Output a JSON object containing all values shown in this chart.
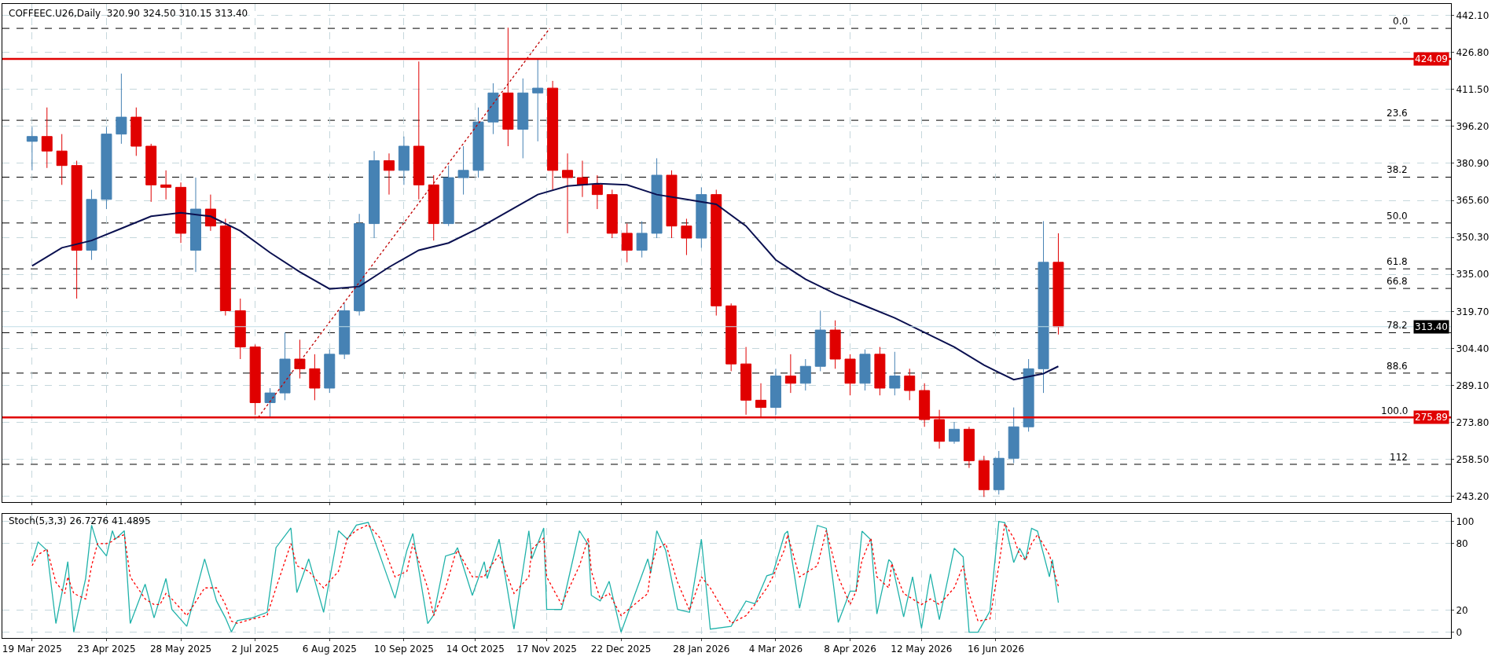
{
  "chart_data": [
    {
      "type": "candlestick",
      "title": "COFFEEC.U26,Daily  320.90 324.50 310.15 313.40",
      "x": [
        "2025-03-19",
        "2025-03-26",
        "2025-04-02",
        "2025-04-09",
        "2025-04-16",
        "2025-04-23",
        "2025-04-30",
        "2025-05-07",
        "2025-05-14",
        "2025-05-21",
        "2025-05-28",
        "2025-06-04",
        "2025-06-11",
        "2025-06-18",
        "2025-06-25",
        "2025-07-02",
        "2025-07-09",
        "2025-07-16",
        "2025-07-23",
        "2025-07-30",
        "2025-08-06",
        "2025-08-13",
        "2025-08-20",
        "2025-08-27",
        "2025-09-03",
        "2025-09-10",
        "2025-09-17",
        "2025-09-24",
        "2025-10-01",
        "2025-10-08",
        "2025-10-15",
        "2025-10-22",
        "2025-10-29",
        "2025-11-05",
        "2025-11-12",
        "2025-11-19",
        "2025-11-26",
        "2025-12-03",
        "2025-12-10",
        "2025-12-17",
        "2025-12-24",
        "2025-12-31",
        "2026-01-07",
        "2026-01-14",
        "2026-01-21",
        "2026-01-28",
        "2026-02-04",
        "2026-02-11",
        "2026-02-18",
        "2026-02-25",
        "2026-03-04",
        "2026-03-11",
        "2026-03-18",
        "2026-03-25",
        "2026-04-01",
        "2026-04-08",
        "2026-04-15",
        "2026-04-22",
        "2026-04-29",
        "2026-05-06",
        "2026-05-13",
        "2026-05-20",
        "2026-05-27",
        "2026-06-03",
        "2026-06-10",
        "2026-06-17",
        "2026-06-24",
        "2026-07-01",
        "2026-07-08",
        "2026-07-15"
      ],
      "ohlc": [
        [
          390,
          396,
          378,
          392
        ],
        [
          392,
          404,
          379,
          386
        ],
        [
          386,
          393,
          372,
          380
        ],
        [
          380,
          382,
          325,
          345
        ],
        [
          345,
          370,
          341,
          366
        ],
        [
          366,
          396,
          362,
          393
        ],
        [
          393,
          418,
          389,
          400
        ],
        [
          400,
          404,
          384,
          388
        ],
        [
          388,
          389,
          365,
          372
        ],
        [
          372,
          378,
          366,
          371
        ],
        [
          371,
          373,
          348,
          352
        ],
        [
          345,
          375,
          336,
          362
        ],
        [
          362,
          368,
          353,
          355
        ],
        [
          355,
          358,
          318,
          320
        ],
        [
          320,
          325,
          300,
          305
        ],
        [
          305,
          306,
          277,
          282
        ],
        [
          282,
          288,
          276,
          286
        ],
        [
          286,
          311,
          283,
          300
        ],
        [
          300,
          308,
          292,
          296
        ],
        [
          296,
          302,
          283,
          288
        ],
        [
          288,
          304,
          286,
          302
        ],
        [
          302,
          323,
          300,
          320
        ],
        [
          320,
          360,
          318,
          356
        ],
        [
          356,
          386,
          350,
          382
        ],
        [
          382,
          385,
          368,
          378
        ],
        [
          378,
          392,
          372,
          388
        ],
        [
          388,
          423,
          366,
          372
        ],
        [
          372,
          376,
          349,
          356
        ],
        [
          356,
          380,
          355,
          375
        ],
        [
          375,
          388,
          368,
          378
        ],
        [
          378,
          404,
          375,
          398
        ],
        [
          398,
          414,
          393,
          410
        ],
        [
          410,
          437,
          388,
          395
        ],
        [
          395,
          416,
          383,
          410
        ],
        [
          410,
          424,
          390,
          412
        ],
        [
          412,
          415,
          370,
          378
        ],
        [
          378,
          385,
          352,
          375
        ],
        [
          375,
          382,
          367,
          372
        ],
        [
          372,
          376,
          362,
          368
        ],
        [
          368,
          370,
          350,
          352
        ],
        [
          352,
          356,
          340,
          345
        ],
        [
          345,
          357,
          342,
          352
        ],
        [
          352,
          383,
          350,
          376
        ],
        [
          376,
          378,
          350,
          355
        ],
        [
          355,
          358,
          343,
          350
        ],
        [
          350,
          371,
          346,
          368
        ],
        [
          368,
          370,
          318,
          322
        ],
        [
          322,
          323,
          295,
          298
        ],
        [
          298,
          305,
          277,
          283
        ],
        [
          283,
          290,
          276,
          280
        ],
        [
          280,
          296,
          277,
          293
        ],
        [
          293,
          302,
          286,
          290
        ],
        [
          290,
          300,
          287,
          297
        ],
        [
          297,
          320,
          295,
          312
        ],
        [
          312,
          316,
          296,
          300
        ],
        [
          300,
          302,
          285,
          290
        ],
        [
          290,
          304,
          287,
          302
        ],
        [
          302,
          305,
          285,
          288
        ],
        [
          288,
          303,
          285,
          293
        ],
        [
          293,
          296,
          283,
          287
        ],
        [
          287,
          290,
          272,
          275
        ],
        [
          275,
          279,
          263,
          266
        ],
        [
          266,
          274,
          265,
          271
        ],
        [
          271,
          272,
          255,
          258
        ],
        [
          258,
          260,
          243,
          246
        ],
        [
          246,
          262,
          244,
          259
        ],
        [
          259,
          280,
          257,
          272
        ],
        [
          272,
          300,
          270,
          296
        ],
        [
          296,
          357,
          286,
          340
        ],
        [
          340,
          352,
          310.15,
          313.4
        ]
      ],
      "colors": [
        "#4682b4",
        "#e00000",
        "#e00000",
        "#e00000",
        "#4682b4",
        "#4682b4",
        "#4682b4",
        "#e00000",
        "#e00000",
        "#e00000",
        "#e00000",
        "#4682b4",
        "#e00000",
        "#e00000",
        "#e00000",
        "#e00000",
        "#4682b4",
        "#4682b4",
        "#e00000",
        "#e00000",
        "#4682b4",
        "#4682b4",
        "#4682b4",
        "#4682b4",
        "#e00000",
        "#4682b4",
        "#e00000",
        "#e00000",
        "#4682b4",
        "#4682b4",
        "#4682b4",
        "#4682b4",
        "#e00000",
        "#4682b4",
        "#4682b4",
        "#e00000",
        "#e00000",
        "#e00000",
        "#e00000",
        "#e00000",
        "#e00000",
        "#4682b4",
        "#4682b4",
        "#e00000",
        "#e00000",
        "#4682b4",
        "#e00000",
        "#e00000",
        "#e00000",
        "#e00000",
        "#4682b4",
        "#e00000",
        "#4682b4",
        "#4682b4",
        "#e00000",
        "#e00000",
        "#4682b4",
        "#e00000",
        "#4682b4",
        "#e00000",
        "#e00000",
        "#e00000",
        "#4682b4",
        "#e00000",
        "#e00000",
        "#4682b4",
        "#4682b4",
        "#4682b4",
        "#4682b4",
        "#e00000"
      ],
      "series": [
        {
          "type": "line",
          "color": "#0a1050",
          "x": [
            "2025-03-19",
            "2025-04-02",
            "2025-04-16",
            "2025-04-30",
            "2025-05-14",
            "2025-05-28",
            "2025-06-11",
            "2025-06-25",
            "2025-07-09",
            "2025-07-23",
            "2025-08-06",
            "2025-08-20",
            "2025-09-03",
            "2025-09-17",
            "2025-10-01",
            "2025-10-15",
            "2025-10-29",
            "2025-11-12",
            "2025-11-26",
            "2025-12-10",
            "2025-12-24",
            "2026-01-07",
            "2026-01-21",
            "2026-02-04",
            "2026-02-18",
            "2026-03-04",
            "2026-03-18",
            "2026-04-01",
            "2026-04-15",
            "2026-04-29",
            "2026-05-13",
            "2026-05-27",
            "2026-06-10",
            "2026-06-24",
            "2026-07-08",
            "2026-07-15"
          ],
          "values": [
            338.5,
            346,
            349,
            354,
            359,
            360.5,
            359,
            353,
            344,
            336,
            329,
            330,
            338,
            345,
            348,
            354,
            361,
            368,
            371.5,
            372.5,
            372,
            368,
            366,
            364,
            355,
            341,
            333,
            327,
            322,
            317,
            311,
            305,
            297.5,
            291.5,
            294,
            297
          ]
        },
        {
          "type": "line",
          "color": "#c00000",
          "line_style": "dotted",
          "x": [
            "2025-07-03",
            "2025-11-18"
          ],
          "values": [
            275.9,
            436.7
          ]
        }
      ],
      "ref_lines": [
        {
          "axis": "y",
          "value": 424.09,
          "label": "424.09",
          "color": "#e00000",
          "line_style": "solid"
        },
        {
          "axis": "y",
          "value": 275.89,
          "label": "275.89",
          "color": "#e00000",
          "line_style": "solid"
        },
        {
          "axis": "y",
          "value": 313.4,
          "label": "313.40",
          "color": "#c0dce6",
          "line_style": "solid"
        },
        {
          "axis": "y",
          "value": 436.7,
          "color": "#000000",
          "line_style": "dashed"
        },
        {
          "axis": "y",
          "value": 398.7,
          "color": "#000000",
          "line_style": "dashed"
        },
        {
          "axis": "y",
          "value": 375.2,
          "color": "#000000",
          "line_style": "dashed"
        },
        {
          "axis": "y",
          "value": 356.25,
          "color": "#000000",
          "line_style": "dashed"
        },
        {
          "axis": "y",
          "value": 337.3,
          "color": "#000000",
          "line_style": "dashed"
        },
        {
          "axis": "y",
          "value": 329.2,
          "color": "#000000",
          "line_style": "dashed"
        },
        {
          "axis": "y",
          "value": 310.9,
          "color": "#000000",
          "line_style": "dashed"
        },
        {
          "axis": "y",
          "value": 294.2,
          "color": "#000000",
          "line_style": "dashed"
        },
        {
          "axis": "y",
          "value": 256.5,
          "color": "#000000",
          "line_style": "dashed"
        }
      ],
      "annotations": [
        {
          "text": "0.0",
          "x": "2026-12-28",
          "y": 436.7
        },
        {
          "text": "23.6",
          "x": "2026-12-28",
          "y": 398.7
        },
        {
          "text": "38.2",
          "x": "2026-12-28",
          "y": 375.2
        },
        {
          "text": "50.0",
          "x": "2026-12-28",
          "y": 356.25
        },
        {
          "text": "61.8",
          "x": "2026-12-28",
          "y": 337.3
        },
        {
          "text": "66.8",
          "x": "2026-12-28",
          "y": 329.2
        },
        {
          "text": "78.2",
          "x": "2026-12-28",
          "y": 310.9
        },
        {
          "text": "88.6",
          "x": "2026-12-28",
          "y": 294.2
        },
        {
          "text": "100.0",
          "x": "2026-12-28",
          "y": 275.8
        },
        {
          "text": "112",
          "x": "2026-12-28",
          "y": 256.5
        }
      ],
      "xlim": [
        "2025-03-05",
        "2027-01-15"
      ],
      "xticks": [
        {
          "value": "2025-03-19",
          "label": null
        },
        {
          "value": "2025-04-23",
          "label": null
        },
        {
          "value": "2025-05-28",
          "label": null
        },
        {
          "value": "2025-07-02",
          "label": null
        },
        {
          "value": "2025-08-06",
          "label": null
        },
        {
          "value": "2025-09-10",
          "label": null
        },
        {
          "value": "2025-10-14",
          "label": null
        },
        {
          "value": "2025-11-17",
          "label": null
        },
        {
          "value": "2025-12-22",
          "label": null
        },
        {
          "value": "2026-01-28",
          "label": null
        },
        {
          "value": "2026-03-04",
          "label": null
        },
        {
          "value": "2026-04-08",
          "label": null
        },
        {
          "value": "2026-05-12",
          "label": null
        },
        {
          "value": "2026-06-16",
          "label": null
        }
      ],
      "ylim": [
        240.9,
        446.8
      ],
      "yticks": [
        {
          "value": 442.1,
          "label": "442.10"
        },
        {
          "value": 426.8,
          "label": "426.80"
        },
        {
          "value": 411.5,
          "label": "411.50"
        },
        {
          "value": 396.2,
          "label": "396.20"
        },
        {
          "value": 380.9,
          "label": "380.90"
        },
        {
          "value": 365.6,
          "label": "365.60"
        },
        {
          "value": 350.3,
          "label": "350.30"
        },
        {
          "value": 335,
          "label": "335.00"
        },
        {
          "value": 319.7,
          "label": "319.70"
        },
        {
          "value": 304.4,
          "label": "304.40"
        },
        {
          "value": 289.1,
          "label": "289.10"
        },
        {
          "value": 273.8,
          "label": "273.80"
        },
        {
          "value": 258.5,
          "label": "258.50"
        },
        {
          "value": 243.2,
          "label": "243.20"
        }
      ],
      "tick_labels": "y",
      "grid": true
    },
    {
      "type": "line",
      "title": "Stoch(5,3,3) 26.7276 41.4895",
      "x": [
        "2025-03-19",
        "2025-03-21",
        "2025-03-26",
        "2025-03-31",
        "2025-04-03",
        "2025-04-04",
        "2025-04-08",
        "2025-04-14",
        "2025-04-16",
        "2025-04-18",
        "2025-04-23",
        "2025-04-25",
        "2025-04-28",
        "2025-05-01",
        "2025-05-05",
        "2025-05-12",
        "2025-05-15",
        "2025-05-19",
        "2025-05-21",
        "2025-05-23",
        "2025-05-30",
        "2025-06-09",
        "2025-06-13",
        "2025-06-18",
        "2025-06-20",
        "2025-06-24",
        "2025-07-01",
        "2025-07-08",
        "2025-07-11",
        "2025-07-18",
        "2025-07-22",
        "2025-07-28",
        "2025-08-04",
        "2025-08-11",
        "2025-08-14",
        "2025-08-19",
        "2025-08-25",
        "2025-08-29",
        "2025-09-05",
        "2025-09-11",
        "2025-09-15",
        "2025-09-22",
        "2025-09-24",
        "2025-09-30",
        "2025-10-03",
        "2025-10-06",
        "2025-10-13",
        "2025-10-17",
        "2025-10-20",
        "2025-10-24",
        "2025-10-31",
        "2025-11-07",
        "2025-11-10",
        "2025-11-14",
        "2025-11-17",
        "2025-11-24",
        "2025-12-02",
        "2025-12-05",
        "2025-12-08",
        "2025-12-11",
        "2025-12-16",
        "2025-12-22",
        "2026-01-02",
        "2026-01-05",
        "2026-01-07",
        "2026-01-12",
        "2026-01-16",
        "2026-01-22",
        "2026-01-28",
        "2026-02-02",
        "2026-02-11",
        "2026-02-18",
        "2026-02-23",
        "2026-02-27",
        "2026-03-03",
        "2026-03-09",
        "2026-03-10",
        "2026-03-16",
        "2026-03-24",
        "2026-03-27",
        "2026-04-02",
        "2026-04-08",
        "2026-04-10",
        "2026-04-14",
        "2026-04-17",
        "2026-04-21",
        "2026-04-27",
        "2026-04-28",
        "2026-05-04",
        "2026-05-07",
        "2026-05-12",
        "2026-05-15",
        "2026-05-20",
        "2026-05-27",
        "2026-06-01",
        "2026-06-03",
        "2026-06-08",
        "2026-06-12",
        "2026-06-17",
        "2026-06-19",
        "2026-06-24",
        "2026-06-26",
        "2026-06-30",
        "2026-07-02",
        "2026-07-06",
        "2026-07-10",
        "2026-07-13",
        "2026-07-15"
      ],
      "series": [
        {
          "color": "#20b2aa",
          "line_style": "solid",
          "values": [
            63.7,
            81.4,
            73.9,
            7.9,
            48.5,
            63.7,
            0.3,
            48.5,
            96.7,
            78.9,
            68.8,
            91.6,
            84,
            91.6,
            7.9,
            43.4,
            13,
            30.7,
            48.5,
            20.6,
            5.4,
            66.2,
            28.2,
            13,
            0.3,
            10.5,
            13,
            18,
            76.4,
            94.1,
            35.8,
            66.2,
            18,
            91.6,
            84,
            96.7,
            99.2,
            68.8,
            30.7,
            73.9,
            89.1,
            7.9,
            15.5,
            68.8,
            71.3,
            76.4,
            33.3,
            63.7,
            48.5,
            84,
            2.8,
            91.6,
            66.2,
            94.1,
            20.6,
            20.6,
            91.6,
            78.9,
            33.3,
            28.2,
            46,
            0,
            66.2,
            53.6,
            91.6,
            73.9,
            20.6,
            18,
            84,
            2.8,
            5.4,
            28.2,
            25.7,
            51,
            52.6,
            88.7,
            91.2,
            21.6,
            96.4,
            93.8,
            8.8,
            37.1,
            37.1,
            91.2,
            83.5,
            16.5,
            65.5,
            62.9,
            13.9,
            50,
            3.6,
            52.6,
            11.3,
            75.8,
            68,
            0,
            0,
            19.1,
            100,
            99,
            62.9,
            75.8,
            65.5,
            93.8,
            91.2,
            50,
            65.5,
            26.7
          ]
        },
        {
          "color": "#ff0000",
          "line_style": "dotted",
          "values": [
            60,
            70,
            75,
            45,
            35,
            50,
            35,
            30,
            60,
            80,
            80,
            82,
            85,
            88,
            50,
            30,
            25,
            25,
            35,
            30,
            15,
            40,
            40,
            25,
            10,
            8,
            12,
            15,
            40,
            80,
            60,
            55,
            40,
            55,
            85,
            92,
            97,
            85,
            50,
            55,
            80,
            40,
            15,
            40,
            68,
            74,
            50,
            50,
            55,
            70,
            35,
            50,
            75,
            85,
            50,
            25,
            60,
            85,
            55,
            30,
            35,
            15,
            35,
            58,
            75,
            80,
            45,
            20,
            50,
            40,
            8,
            15,
            25,
            40,
            50,
            75,
            88,
            50,
            60,
            92,
            50,
            25,
            37,
            65,
            85,
            50,
            40,
            62,
            35,
            30,
            25,
            30,
            25,
            40,
            60,
            35,
            10,
            12,
            60,
            98,
            85,
            70,
            65,
            80,
            88,
            70,
            60,
            41.5
          ]
        }
      ],
      "xlim": [
        "2025-03-05",
        "2027-01-15"
      ],
      "xticks": [
        {
          "value": "2025-03-19",
          "label": "19 Mar 2025"
        },
        {
          "value": "2025-04-23",
          "label": "23 Apr 2025"
        },
        {
          "value": "2025-05-28",
          "label": "28 May 2025"
        },
        {
          "value": "2025-07-02",
          "label": "2 Jul 2025"
        },
        {
          "value": "2025-08-06",
          "label": "6 Aug 2025"
        },
        {
          "value": "2025-09-10",
          "label": "10 Sep 2025"
        },
        {
          "value": "2025-10-14",
          "label": "14 Oct 2025"
        },
        {
          "value": "2025-11-17",
          "label": "17 Nov 2025"
        },
        {
          "value": "2025-12-22",
          "label": "22 Dec 2025"
        },
        {
          "value": "2026-01-28",
          "label": "28 Jan 2026"
        },
        {
          "value": "2026-03-04",
          "label": "4 Mar 2026"
        },
        {
          "value": "2026-04-08",
          "label": "8 Apr 2026"
        },
        {
          "value": "2026-05-12",
          "label": "12 May 2026"
        },
        {
          "value": "2026-06-16",
          "label": "16 Jun 2026"
        }
      ],
      "ylim": [
        -5.2,
        107.2
      ],
      "yticks": [
        0,
        20,
        80,
        100
      ],
      "grid": true
    }
  ]
}
